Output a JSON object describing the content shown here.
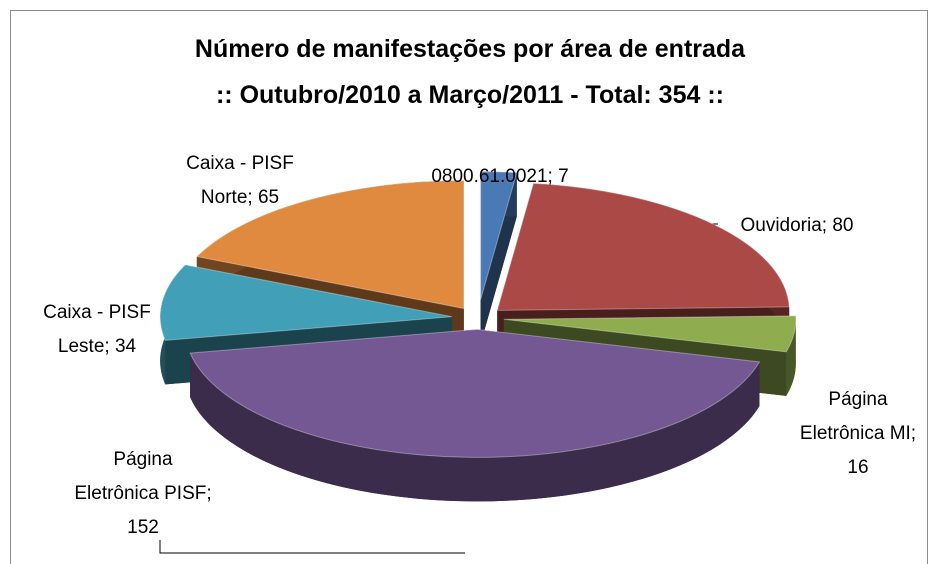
{
  "chart_data": {
    "type": "pie",
    "title": "Número de manifestações por área de entrada",
    "subtitle": ":: Outubro/2010 a Março/2011 - Total: 354 ::",
    "categories": [
      "0800.61.0021",
      "Ouvidoria",
      "Página Eletrônica MI",
      "Página Eletrônica PISF",
      "Caixa - PISF Leste",
      "Caixa - PISF Norte"
    ],
    "values": [
      7,
      80,
      16,
      152,
      34,
      65
    ],
    "value_labels": [
      "0800.61.0021; 7",
      "Ouvidoria; 80",
      "Página Eletrônica MI; 16",
      "Página Eletrônica PISF; 152",
      "Caixa - PISF Leste; 34",
      "Caixa - PISF Norte; 65"
    ],
    "colors": [
      "#4a7ab5",
      "#ab4946",
      "#8fad4f",
      "#735894",
      "#41a0b8",
      "#e08a40"
    ]
  }
}
